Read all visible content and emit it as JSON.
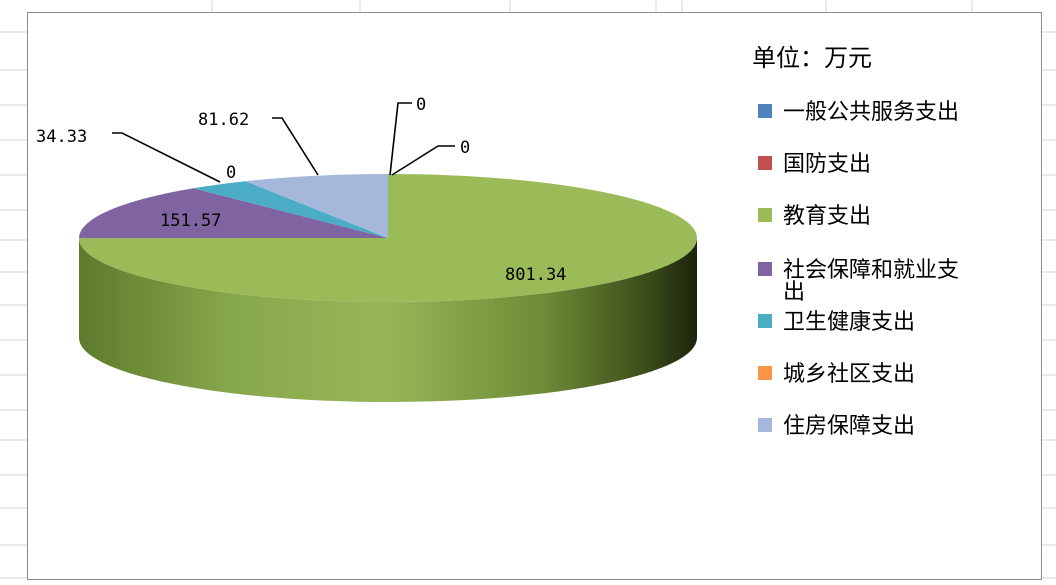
{
  "chart_data": {
    "type": "pie",
    "style": "3d",
    "unit_label": "单位：万元",
    "legend_placement": "right",
    "slices": [
      {
        "name": "一般公共服务支出",
        "value": 0,
        "color": "#4f81bd"
      },
      {
        "name": "国防支出",
        "value": 0,
        "color": "#c0504d"
      },
      {
        "name": "教育支出",
        "value": 801.34,
        "color": "#9bbb59"
      },
      {
        "name": "社会保障和就业支出",
        "value": 151.57,
        "color": "#8064a2"
      },
      {
        "name": "卫生健康支出",
        "value": 34.33,
        "color": "#4bacc6"
      },
      {
        "name": "城乡社区支出",
        "value": 0,
        "color": "#f79646"
      },
      {
        "name": "住房保障支出",
        "value": 81.62,
        "color": "#a5b8dc"
      }
    ],
    "data_labels": [
      {
        "for": "一般公共服务支出",
        "text": "0"
      },
      {
        "for": "国防支出",
        "text": "0"
      },
      {
        "for": "教育支出",
        "text": "801.34"
      },
      {
        "for": "社会保障和就业支出",
        "text": "151.57"
      },
      {
        "for": "卫生健康支出",
        "text": "34.33"
      },
      {
        "for": "城乡社区支出",
        "text": "0"
      },
      {
        "for": "住房保障支出",
        "text": "81.62"
      }
    ]
  }
}
